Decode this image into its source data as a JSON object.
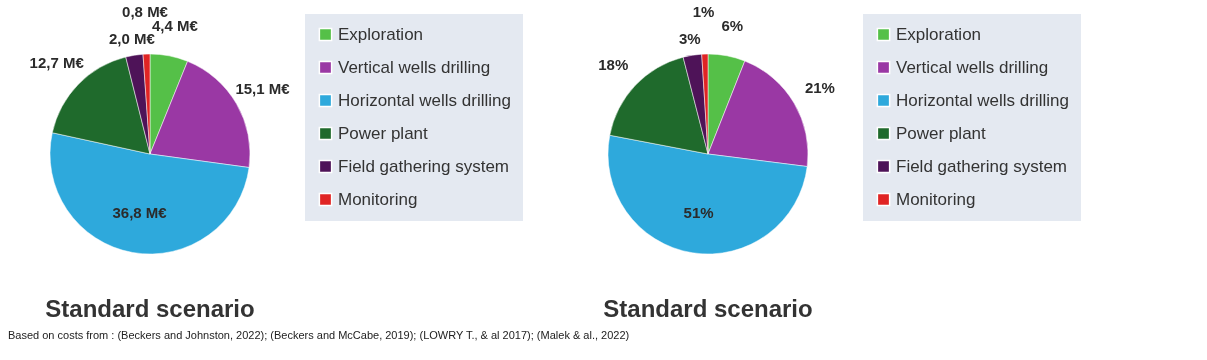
{
  "chart_data": [
    {
      "type": "pie",
      "title": "Standard scenario",
      "categories": [
        "Exploration",
        "Vertical wells drilling",
        "Horizontal wells drilling",
        "Power plant",
        "Field gathering system",
        "Monitoring"
      ],
      "values": [
        4.4,
        15.1,
        36.8,
        12.7,
        2.0,
        0.8
      ],
      "value_labels": [
        "4,4 M€",
        "15,1 M€",
        "36,8 M€",
        "12,7 M€",
        "2,0 M€",
        "0,8 M€"
      ],
      "colors": [
        "#55c048",
        "#9a38a4",
        "#2ea9dc",
        "#1f6a2c",
        "#4e1358",
        "#e02424"
      ],
      "legend": "right",
      "annotations": [
        "Based on costs from : (Beckers and Johnston, 2022); (Beckers and McCabe, 2019); (LOWRY T., & al 2017); (Malek & al., 2022)"
      ]
    },
    {
      "type": "pie",
      "title": "Standard scenario",
      "categories": [
        "Exploration",
        "Vertical wells drilling",
        "Horizontal wells drilling",
        "Power plant",
        "Field gathering system",
        "Monitoring"
      ],
      "values": [
        6,
        21,
        51,
        18,
        3,
        1
      ],
      "value_labels": [
        "6%",
        "21%",
        "51%",
        "18%",
        "3%",
        "1%"
      ],
      "colors": [
        "#55c048",
        "#9a38a4",
        "#2ea9dc",
        "#1f6a2c",
        "#4e1358",
        "#e02424"
      ],
      "legend": "right"
    }
  ]
}
